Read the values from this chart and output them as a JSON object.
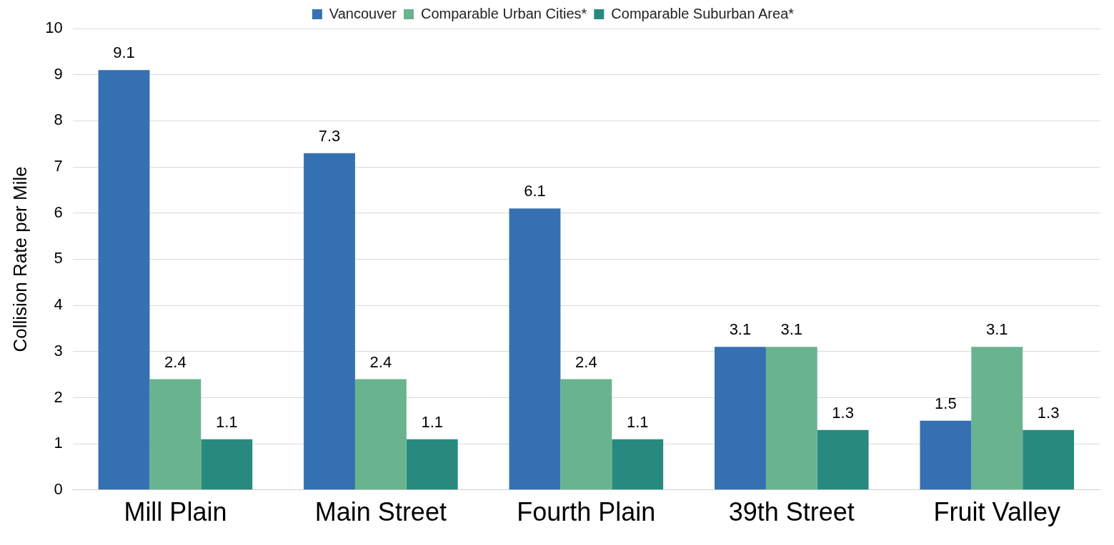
{
  "chart_data": {
    "type": "bar",
    "ylabel": "Collision Rate per Mile",
    "categories": [
      "Mill Plain",
      "Main Street",
      "Fourth Plain",
      "39th Street",
      "Fruit Valley"
    ],
    "series": [
      {
        "name": "Vancouver",
        "color": "#3571b1",
        "values": [
          9.1,
          7.3,
          6.1,
          3.1,
          1.5
        ]
      },
      {
        "name": "Comparable Urban Cities*",
        "color": "#69b38f",
        "values": [
          2.4,
          2.4,
          2.4,
          3.1,
          3.1
        ]
      },
      {
        "name": "Comparable Suburban Area*",
        "color": "#288a7f",
        "values": [
          1.1,
          1.1,
          1.1,
          1.3,
          1.3
        ]
      }
    ],
    "ylim": [
      0,
      10
    ],
    "yticks": [
      0,
      1,
      2,
      3,
      4,
      5,
      6,
      7,
      8,
      9,
      10
    ],
    "grid": "y",
    "legend": "top",
    "data_labels": true
  }
}
